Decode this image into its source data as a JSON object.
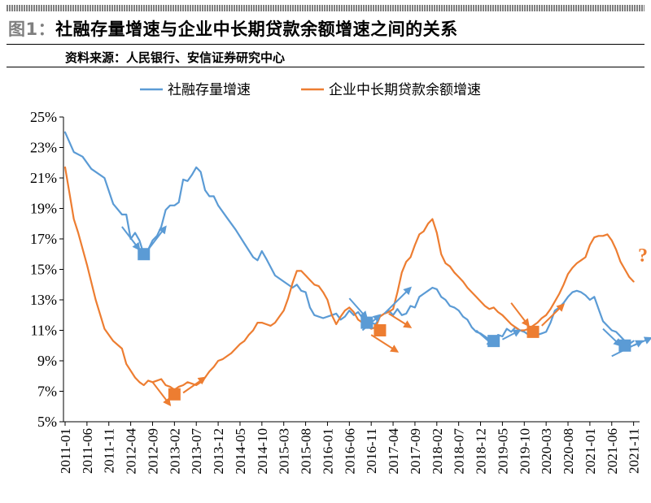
{
  "header": {
    "figure_no": "图1：",
    "title": "社融存量增速与企业中长期贷款余额增速之间的关系",
    "source": "资料来源：人民银行、安信证券研究中心"
  },
  "colors": {
    "blue": "#5b9bd5",
    "orange": "#ed7d31",
    "axis": "#000000"
  },
  "chart_data": {
    "type": "line",
    "title": "社融存量增速与企业中长期贷款余额增速之间的关系",
    "xlabel": "",
    "ylabel": "",
    "ylim": [
      5,
      25
    ],
    "yticks": [
      5,
      7,
      9,
      11,
      13,
      15,
      17,
      19,
      21,
      23,
      25
    ],
    "ytick_labels": [
      "5%",
      "7%",
      "9%",
      "11%",
      "13%",
      "15%",
      "17%",
      "19%",
      "21%",
      "23%",
      "25%"
    ],
    "x_start": "2011-01",
    "x_end": "2022-01",
    "xtick_labels": [
      "2011-01",
      "2011-06",
      "2011-11",
      "2012-04",
      "2012-09",
      "2013-02",
      "2013-07",
      "2013-12",
      "2014-05",
      "2014-10",
      "2015-03",
      "2015-08",
      "2016-01",
      "2016-06",
      "2016-11",
      "2017-04",
      "2017-09",
      "2018-02",
      "2018-07",
      "2018-12",
      "2019-05",
      "2019-10",
      "2020-03",
      "2020-08",
      "2021-01",
      "2021-06",
      "2021-11"
    ],
    "legend_position": "top-center",
    "series": [
      {
        "name": "社融存量增速",
        "color": "#5b9bd5",
        "anchors": [
          [
            0,
            24.0
          ],
          [
            2,
            22.7
          ],
          [
            4,
            22.4
          ],
          [
            6,
            21.6
          ],
          [
            9,
            21.0
          ],
          [
            11,
            19.3
          ],
          [
            13,
            18.6
          ],
          [
            14,
            18.6
          ],
          [
            15,
            17.0
          ],
          [
            16,
            17.4
          ],
          [
            17,
            16.9
          ],
          [
            18,
            16.0
          ],
          [
            19,
            16.3
          ],
          [
            20,
            16.9
          ],
          [
            21,
            17.2
          ],
          [
            22,
            17.8
          ],
          [
            23,
            18.9
          ],
          [
            24,
            19.2
          ],
          [
            25,
            19.2
          ],
          [
            26,
            19.4
          ],
          [
            27,
            20.9
          ],
          [
            28,
            20.8
          ],
          [
            29,
            21.2
          ],
          [
            30,
            21.7
          ],
          [
            31,
            21.4
          ],
          [
            32,
            20.2
          ],
          [
            33,
            19.8
          ],
          [
            34,
            19.8
          ],
          [
            35,
            19.2
          ],
          [
            37,
            18.4
          ],
          [
            39,
            17.6
          ],
          [
            41,
            16.7
          ],
          [
            43,
            15.8
          ],
          [
            44,
            15.6
          ],
          [
            45,
            16.2
          ],
          [
            46,
            15.7
          ],
          [
            48,
            14.6
          ],
          [
            50,
            14.2
          ],
          [
            52,
            13.8
          ],
          [
            53,
            14.0
          ],
          [
            54,
            13.6
          ],
          [
            55,
            13.5
          ],
          [
            56,
            12.5
          ],
          [
            57,
            12.0
          ],
          [
            59,
            11.8
          ],
          [
            61,
            12.0
          ],
          [
            62,
            12.1
          ],
          [
            63,
            11.7
          ],
          [
            64,
            11.9
          ],
          [
            65,
            12.3
          ],
          [
            66,
            12.0
          ],
          [
            67,
            12.2
          ],
          [
            68,
            11.8
          ],
          [
            69,
            11.5
          ],
          [
            70,
            11.5
          ],
          [
            71,
            11.4
          ],
          [
            72,
            11.9
          ],
          [
            73,
            12.1
          ],
          [
            74,
            12.3
          ],
          [
            75,
            12.0
          ],
          [
            76,
            12.4
          ],
          [
            77,
            12.0
          ],
          [
            78,
            12.1
          ],
          [
            79,
            12.6
          ],
          [
            80,
            12.5
          ],
          [
            81,
            13.2
          ],
          [
            82,
            13.4
          ],
          [
            83,
            13.6
          ],
          [
            84,
            13.8
          ],
          [
            85,
            13.7
          ],
          [
            86,
            13.2
          ],
          [
            87,
            13.0
          ],
          [
            88,
            12.6
          ],
          [
            89,
            12.5
          ],
          [
            90,
            12.3
          ],
          [
            91,
            11.9
          ],
          [
            92,
            11.7
          ],
          [
            93,
            11.2
          ],
          [
            94,
            10.9
          ],
          [
            95,
            10.8
          ],
          [
            96,
            10.6
          ],
          [
            97,
            10.4
          ],
          [
            98,
            10.3
          ],
          [
            99,
            10.7
          ],
          [
            100,
            10.6
          ],
          [
            101,
            11.1
          ],
          [
            102,
            10.9
          ],
          [
            103,
            11.2
          ],
          [
            104,
            11.0
          ],
          [
            105,
            10.9
          ],
          [
            106,
            10.7
          ],
          [
            107,
            10.7
          ],
          [
            108,
            10.7
          ],
          [
            109,
            10.8
          ],
          [
            110,
            10.9
          ],
          [
            111,
            11.5
          ],
          [
            112,
            12.3
          ],
          [
            113,
            12.5
          ],
          [
            114,
            12.8
          ],
          [
            115,
            13.2
          ],
          [
            116,
            13.5
          ],
          [
            117,
            13.6
          ],
          [
            118,
            13.5
          ],
          [
            119,
            13.3
          ],
          [
            120,
            13.0
          ],
          [
            121,
            13.2
          ],
          [
            122,
            12.4
          ],
          [
            123,
            11.6
          ],
          [
            124,
            11.3
          ],
          [
            125,
            11.0
          ],
          [
            126,
            10.9
          ],
          [
            127,
            10.6
          ],
          [
            128,
            10.3
          ],
          [
            129,
            10.1
          ],
          [
            130,
            10.3
          ]
        ]
      },
      {
        "name": "企业中长期贷款余额增速",
        "color": "#ed7d31",
        "anchors": [
          [
            0,
            21.7
          ],
          [
            1,
            20.0
          ],
          [
            2,
            18.3
          ],
          [
            3,
            17.4
          ],
          [
            5,
            15.3
          ],
          [
            7,
            13.0
          ],
          [
            9,
            11.1
          ],
          [
            11,
            10.3
          ],
          [
            13,
            9.8
          ],
          [
            14,
            8.8
          ],
          [
            16,
            7.9
          ],
          [
            17,
            7.6
          ],
          [
            18,
            7.4
          ],
          [
            19,
            7.7
          ],
          [
            20,
            7.6
          ],
          [
            21,
            7.7
          ],
          [
            22,
            7.8
          ],
          [
            23,
            7.4
          ],
          [
            24,
            7.3
          ],
          [
            25,
            7.1
          ],
          [
            26,
            7.3
          ],
          [
            27,
            7.4
          ],
          [
            28,
            7.6
          ],
          [
            29,
            7.5
          ],
          [
            30,
            7.4
          ],
          [
            31,
            7.6
          ],
          [
            32,
            7.9
          ],
          [
            33,
            8.3
          ],
          [
            34,
            8.6
          ],
          [
            35,
            9.0
          ],
          [
            36,
            9.1
          ],
          [
            37,
            9.3
          ],
          [
            38,
            9.5
          ],
          [
            39,
            9.8
          ],
          [
            40,
            10.1
          ],
          [
            41,
            10.3
          ],
          [
            42,
            10.7
          ],
          [
            43,
            11.0
          ],
          [
            44,
            11.5
          ],
          [
            45,
            11.5
          ],
          [
            46,
            11.4
          ],
          [
            47,
            11.3
          ],
          [
            48,
            11.5
          ],
          [
            49,
            11.9
          ],
          [
            50,
            12.3
          ],
          [
            51,
            13.1
          ],
          [
            52,
            14.1
          ],
          [
            53,
            14.9
          ],
          [
            54,
            14.9
          ],
          [
            55,
            14.6
          ],
          [
            56,
            14.3
          ],
          [
            57,
            14.0
          ],
          [
            58,
            13.9
          ],
          [
            59,
            13.5
          ],
          [
            60,
            13.0
          ],
          [
            61,
            12.0
          ],
          [
            62,
            11.4
          ],
          [
            63,
            11.9
          ],
          [
            64,
            12.3
          ],
          [
            65,
            12.5
          ],
          [
            66,
            12.2
          ],
          [
            67,
            11.7
          ],
          [
            68,
            11.5
          ],
          [
            69,
            11.3
          ],
          [
            70,
            11.1
          ],
          [
            71,
            11.2
          ],
          [
            72,
            11.9
          ],
          [
            73,
            12.1
          ],
          [
            74,
            12.2
          ],
          [
            75,
            12.4
          ],
          [
            76,
            13.5
          ],
          [
            77,
            14.8
          ],
          [
            78,
            15.5
          ],
          [
            79,
            15.8
          ],
          [
            80,
            16.6
          ],
          [
            81,
            17.3
          ],
          [
            82,
            17.5
          ],
          [
            83,
            18.0
          ],
          [
            84,
            18.3
          ],
          [
            85,
            17.4
          ],
          [
            86,
            16.0
          ],
          [
            87,
            15.4
          ],
          [
            88,
            15.2
          ],
          [
            89,
            14.8
          ],
          [
            90,
            14.5
          ],
          [
            91,
            14.2
          ],
          [
            92,
            13.8
          ],
          [
            93,
            13.5
          ],
          [
            94,
            13.2
          ],
          [
            95,
            12.9
          ],
          [
            96,
            12.6
          ],
          [
            97,
            12.4
          ],
          [
            98,
            12.5
          ],
          [
            99,
            12.2
          ],
          [
            100,
            12.0
          ],
          [
            101,
            11.7
          ],
          [
            102,
            11.4
          ],
          [
            103,
            11.2
          ],
          [
            104,
            11.0
          ],
          [
            105,
            11.0
          ],
          [
            106,
            11.1
          ],
          [
            107,
            11.3
          ],
          [
            108,
            11.5
          ],
          [
            109,
            11.8
          ],
          [
            110,
            12.0
          ],
          [
            111,
            12.4
          ],
          [
            112,
            12.9
          ],
          [
            113,
            13.4
          ],
          [
            114,
            14.0
          ],
          [
            115,
            14.7
          ],
          [
            116,
            15.1
          ],
          [
            117,
            15.4
          ],
          [
            118,
            15.6
          ],
          [
            119,
            15.8
          ],
          [
            120,
            16.6
          ],
          [
            121,
            17.1
          ],
          [
            122,
            17.2
          ],
          [
            123,
            17.2
          ],
          [
            124,
            17.3
          ],
          [
            125,
            16.9
          ],
          [
            126,
            16.3
          ],
          [
            127,
            15.5
          ],
          [
            128,
            15.0
          ],
          [
            129,
            14.5
          ],
          [
            130,
            14.2
          ]
        ]
      }
    ],
    "markers": [
      {
        "series": "社融存量增速",
        "x": 18,
        "y": 16.0
      },
      {
        "series": "企业中长期贷款余额增速",
        "x": 25,
        "y": 6.8
      },
      {
        "series": "社融存量增速",
        "x": 69,
        "y": 11.5
      },
      {
        "series": "企业中长期贷款余额增速",
        "x": 72,
        "y": 11.0
      },
      {
        "series": "社融存量增速",
        "x": 98,
        "y": 10.3
      },
      {
        "series": "企业中长期贷款余额增速",
        "x": 107,
        "y": 10.9
      },
      {
        "series": "社融存量增速",
        "x": 128,
        "y": 10.0
      }
    ],
    "annotation_arrows": [
      {
        "color": "blue",
        "from": [
          13,
          17.8
        ],
        "to": [
          17,
          16.3
        ]
      },
      {
        "color": "blue",
        "from": [
          19,
          16.3
        ],
        "to": [
          23,
          17.8
        ]
      },
      {
        "color": "orange",
        "from": [
          20,
          7.6
        ],
        "to": [
          24,
          6.1
        ]
      },
      {
        "color": "orange",
        "from": [
          27,
          6.9
        ],
        "to": [
          32,
          7.9
        ]
      },
      {
        "color": "blue",
        "from": [
          65,
          13.1
        ],
        "to": [
          69,
          11.8
        ]
      },
      {
        "color": "blue",
        "from": [
          68,
          11.0
        ],
        "to": [
          72,
          12.0
        ]
      },
      {
        "color": "blue",
        "from": [
          73,
          12.1
        ],
        "to": [
          79,
          13.8
        ]
      },
      {
        "color": "orange",
        "from": [
          74,
          12.1
        ],
        "to": [
          79,
          11.2
        ]
      },
      {
        "color": "orange",
        "from": [
          70,
          10.7
        ],
        "to": [
          76,
          9.6
        ]
      },
      {
        "color": "blue",
        "from": [
          94,
          11.0
        ],
        "to": [
          98,
          10.0
        ]
      },
      {
        "color": "blue",
        "from": [
          100,
          10.4
        ],
        "to": [
          104,
          11.0
        ]
      },
      {
        "color": "orange",
        "from": [
          102,
          12.8
        ],
        "to": [
          106,
          11.3
        ]
      },
      {
        "color": "orange",
        "from": [
          109,
          11.3
        ],
        "to": [
          114,
          12.7
        ]
      },
      {
        "color": "blue",
        "from": [
          123,
          11.1
        ],
        "to": [
          127,
          10.0
        ]
      },
      {
        "color": "blue",
        "from": [
          125,
          9.3
        ],
        "to": [
          132,
          10.3
        ]
      },
      {
        "color": "blue",
        "from": [
          130,
          10.0
        ],
        "to": [
          134,
          10.5
        ]
      }
    ],
    "annotations": [
      {
        "text": "?",
        "color": "orange",
        "x": 131,
        "y": 15.5
      }
    ]
  }
}
